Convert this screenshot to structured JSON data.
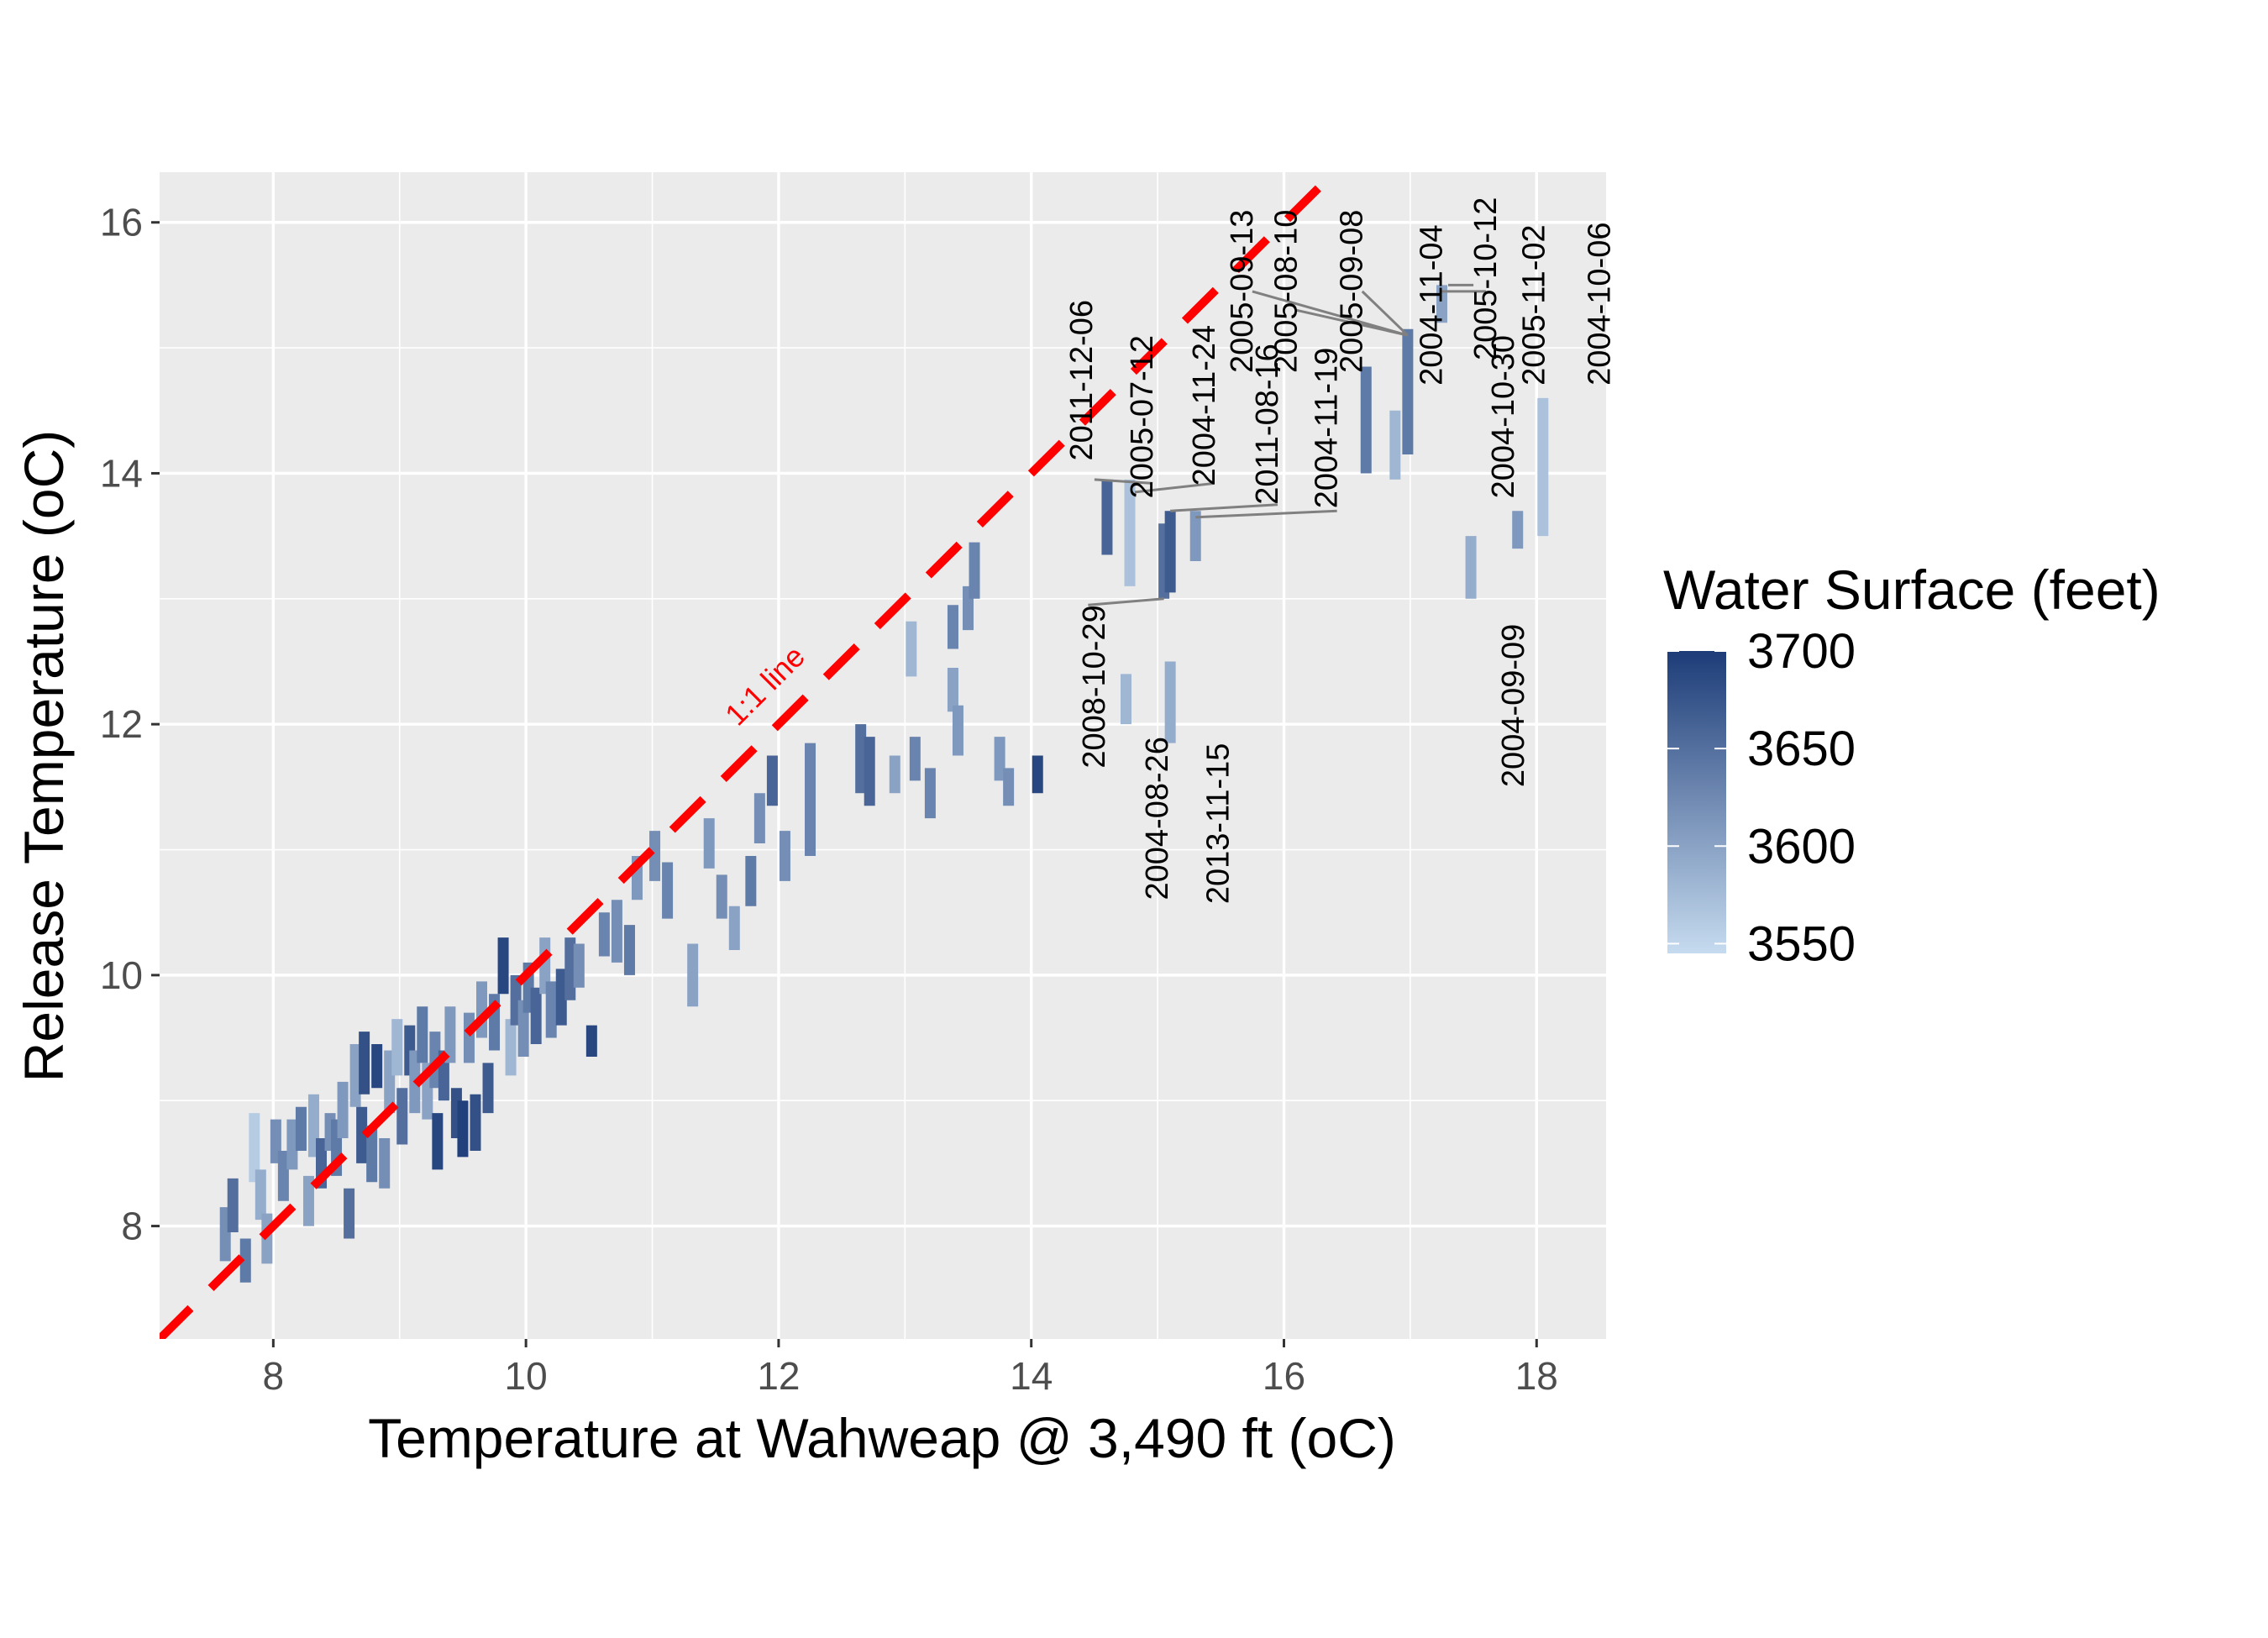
{
  "chart_data": {
    "type": "scatter",
    "title": "",
    "xlabel": "Temperature at Wahweap @ 3,490 ft (oC)",
    "ylabel": "Release Temperature (oC)",
    "xlim": [
      7.1,
      18.55
    ],
    "ylim": [
      7.1,
      16.4
    ],
    "x_ticks": [
      8,
      10,
      12,
      14,
      16,
      18
    ],
    "y_ticks": [
      8,
      10,
      12,
      14,
      16
    ],
    "x_tick_labels": [
      "8",
      "10",
      "12",
      "14",
      "16",
      "18"
    ],
    "y_tick_labels": [
      "8",
      "10",
      "12",
      "14",
      "16"
    ],
    "grid": true,
    "mark_shape": "vertical-segment",
    "reference_line": {
      "label": "1:1 line",
      "slope": 1,
      "intercept": 0,
      "color": "#ff0000",
      "style": "dashed"
    },
    "legend": {
      "title": "Water Surface (feet)",
      "type": "continuous-colorbar",
      "placement": "right",
      "range": [
        3545,
        3700
      ],
      "ticks": [
        3700,
        3650,
        3600,
        3550
      ],
      "tick_labels": [
        "3700",
        "3650",
        "3600",
        "3550"
      ],
      "color_low": "#c6dbef",
      "color_high": "#1d3c78"
    },
    "points": [
      {
        "x": 7.62,
        "ymin": 7.72,
        "ymax": 8.15,
        "ws": 3620
      },
      {
        "x": 7.68,
        "ymin": 7.95,
        "ymax": 8.38,
        "ws": 3650
      },
      {
        "x": 7.78,
        "ymin": 7.55,
        "ymax": 7.9,
        "ws": 3640
      },
      {
        "x": 7.85,
        "ymin": 8.35,
        "ymax": 8.9,
        "ws": 3560
      },
      {
        "x": 7.9,
        "ymin": 8.05,
        "ymax": 8.45,
        "ws": 3590
      },
      {
        "x": 7.95,
        "ymin": 7.7,
        "ymax": 8.1,
        "ws": 3600
      },
      {
        "x": 8.02,
        "ymin": 8.5,
        "ymax": 8.85,
        "ws": 3620
      },
      {
        "x": 8.08,
        "ymin": 8.2,
        "ymax": 8.6,
        "ws": 3630
      },
      {
        "x": 8.15,
        "ymin": 8.45,
        "ymax": 8.85,
        "ws": 3610
      },
      {
        "x": 8.22,
        "ymin": 8.6,
        "ymax": 8.95,
        "ws": 3640
      },
      {
        "x": 8.28,
        "ymin": 8.0,
        "ymax": 8.4,
        "ws": 3600
      },
      {
        "x": 8.32,
        "ymin": 8.55,
        "ymax": 9.05,
        "ws": 3590
      },
      {
        "x": 8.38,
        "ymin": 8.3,
        "ymax": 8.7,
        "ws": 3660
      },
      {
        "x": 8.45,
        "ymin": 8.6,
        "ymax": 8.9,
        "ws": 3620
      },
      {
        "x": 8.5,
        "ymin": 8.4,
        "ymax": 8.85,
        "ws": 3640
      },
      {
        "x": 8.55,
        "ymin": 8.7,
        "ymax": 9.15,
        "ws": 3610
      },
      {
        "x": 8.6,
        "ymin": 7.9,
        "ymax": 8.3,
        "ws": 3650
      },
      {
        "x": 8.65,
        "ymin": 8.95,
        "ymax": 9.45,
        "ws": 3600
      },
      {
        "x": 8.7,
        "ymin": 8.5,
        "ymax": 8.95,
        "ws": 3670
      },
      {
        "x": 8.72,
        "ymin": 9.05,
        "ymax": 9.55,
        "ws": 3680
      },
      {
        "x": 8.78,
        "ymin": 8.35,
        "ymax": 8.8,
        "ws": 3640
      },
      {
        "x": 8.82,
        "ymin": 9.1,
        "ymax": 9.45,
        "ws": 3690
      },
      {
        "x": 8.88,
        "ymin": 8.3,
        "ymax": 8.7,
        "ws": 3620
      },
      {
        "x": 8.92,
        "ymin": 8.9,
        "ymax": 9.4,
        "ws": 3600
      },
      {
        "x": 8.98,
        "ymin": 9.2,
        "ymax": 9.65,
        "ws": 3580
      },
      {
        "x": 9.02,
        "ymin": 8.65,
        "ymax": 9.1,
        "ws": 3650
      },
      {
        "x": 9.08,
        "ymin": 9.2,
        "ymax": 9.6,
        "ws": 3670
      },
      {
        "x": 9.12,
        "ymin": 8.9,
        "ymax": 9.4,
        "ws": 3610
      },
      {
        "x": 9.18,
        "ymin": 9.3,
        "ymax": 9.75,
        "ws": 3640
      },
      {
        "x": 9.22,
        "ymin": 8.85,
        "ymax": 9.3,
        "ws": 3600
      },
      {
        "x": 9.28,
        "ymin": 9.1,
        "ymax": 9.55,
        "ws": 3630
      },
      {
        "x": 9.3,
        "ymin": 8.45,
        "ymax": 8.9,
        "ws": 3690
      },
      {
        "x": 9.35,
        "ymin": 9.0,
        "ymax": 9.4,
        "ws": 3660
      },
      {
        "x": 9.4,
        "ymin": 9.3,
        "ymax": 9.75,
        "ws": 3610
      },
      {
        "x": 9.45,
        "ymin": 8.7,
        "ymax": 9.1,
        "ws": 3680
      },
      {
        "x": 9.5,
        "ymin": 8.55,
        "ymax": 9.0,
        "ws": 3695
      },
      {
        "x": 9.55,
        "ymin": 9.3,
        "ymax": 9.7,
        "ws": 3620
      },
      {
        "x": 9.6,
        "ymin": 8.6,
        "ymax": 9.05,
        "ws": 3680
      },
      {
        "x": 9.65,
        "ymin": 9.5,
        "ymax": 9.95,
        "ws": 3610
      },
      {
        "x": 9.7,
        "ymin": 8.9,
        "ymax": 9.3,
        "ws": 3670
      },
      {
        "x": 9.75,
        "ymin": 9.4,
        "ymax": 9.85,
        "ws": 3640
      },
      {
        "x": 9.82,
        "ymin": 9.85,
        "ymax": 10.3,
        "ws": 3690
      },
      {
        "x": 9.88,
        "ymin": 9.2,
        "ymax": 9.65,
        "ws": 3580
      },
      {
        "x": 9.92,
        "ymin": 9.6,
        "ymax": 10.0,
        "ws": 3650
      },
      {
        "x": 9.98,
        "ymin": 9.35,
        "ymax": 9.8,
        "ws": 3620
      },
      {
        "x": 10.02,
        "ymin": 9.7,
        "ymax": 10.1,
        "ws": 3640
      },
      {
        "x": 10.08,
        "ymin": 9.45,
        "ymax": 9.9,
        "ws": 3660
      },
      {
        "x": 10.15,
        "ymin": 9.85,
        "ymax": 10.3,
        "ws": 3600
      },
      {
        "x": 10.2,
        "ymin": 9.5,
        "ymax": 9.95,
        "ws": 3630
      },
      {
        "x": 10.28,
        "ymin": 9.6,
        "ymax": 10.05,
        "ws": 3670
      },
      {
        "x": 10.35,
        "ymin": 9.8,
        "ymax": 10.3,
        "ws": 3650
      },
      {
        "x": 10.42,
        "ymin": 9.9,
        "ymax": 10.25,
        "ws": 3620
      },
      {
        "x": 10.52,
        "ymin": 9.35,
        "ymax": 9.6,
        "ws": 3690
      },
      {
        "x": 10.62,
        "ymin": 10.15,
        "ymax": 10.5,
        "ws": 3630
      },
      {
        "x": 10.72,
        "ymin": 10.1,
        "ymax": 10.6,
        "ws": 3620
      },
      {
        "x": 10.82,
        "ymin": 10.0,
        "ymax": 10.4,
        "ws": 3640
      },
      {
        "x": 10.88,
        "ymin": 10.6,
        "ymax": 10.95,
        "ws": 3610
      },
      {
        "x": 11.02,
        "ymin": 10.75,
        "ymax": 11.15,
        "ws": 3620
      },
      {
        "x": 11.12,
        "ymin": 10.45,
        "ymax": 10.9,
        "ws": 3630
      },
      {
        "x": 11.32,
        "ymin": 9.75,
        "ymax": 10.25,
        "ws": 3600
      },
      {
        "x": 11.45,
        "ymin": 10.85,
        "ymax": 11.25,
        "ws": 3610
      },
      {
        "x": 11.55,
        "ymin": 10.45,
        "ymax": 10.8,
        "ws": 3620
      },
      {
        "x": 11.65,
        "ymin": 10.2,
        "ymax": 10.55,
        "ws": 3600
      },
      {
        "x": 11.78,
        "ymin": 10.55,
        "ymax": 10.95,
        "ws": 3640
      },
      {
        "x": 11.85,
        "ymin": 11.05,
        "ymax": 11.45,
        "ws": 3620
      },
      {
        "x": 11.95,
        "ymin": 11.35,
        "ymax": 11.75,
        "ws": 3660
      },
      {
        "x": 12.05,
        "ymin": 10.75,
        "ymax": 11.15,
        "ws": 3620
      },
      {
        "x": 12.25,
        "ymin": 10.95,
        "ymax": 11.85,
        "ws": 3630
      },
      {
        "x": 12.65,
        "ymin": 11.45,
        "ymax": 12.0,
        "ws": 3650
      },
      {
        "x": 12.72,
        "ymin": 11.35,
        "ymax": 11.9,
        "ws": 3660
      },
      {
        "x": 12.92,
        "ymin": 11.45,
        "ymax": 11.75,
        "ws": 3600
      },
      {
        "x": 13.05,
        "ymin": 12.38,
        "ymax": 12.82,
        "ws": 3580
      },
      {
        "x": 13.08,
        "ymin": 11.55,
        "ymax": 11.9,
        "ws": 3630
      },
      {
        "x": 13.2,
        "ymin": 11.25,
        "ymax": 11.65,
        "ws": 3630
      },
      {
        "x": 13.38,
        "ymin": 12.1,
        "ymax": 12.45,
        "ws": 3600
      },
      {
        "x": 13.38,
        "ymin": 12.6,
        "ymax": 12.95,
        "ws": 3630
      },
      {
        "x": 13.42,
        "ymin": 11.75,
        "ymax": 12.15,
        "ws": 3610
      },
      {
        "x": 13.5,
        "ymin": 12.75,
        "ymax": 13.1,
        "ws": 3620
      },
      {
        "x": 13.55,
        "ymin": 13.0,
        "ymax": 13.45,
        "ws": 3630
      },
      {
        "x": 13.75,
        "ymin": 11.55,
        "ymax": 11.9,
        "ws": 3610
      },
      {
        "x": 13.82,
        "ymin": 11.35,
        "ymax": 11.65,
        "ws": 3620
      },
      {
        "x": 14.05,
        "ymin": 11.45,
        "ymax": 11.75,
        "ws": 3690
      },
      {
        "x": 14.6,
        "ymin": 13.35,
        "ymax": 13.95,
        "ws": 3660
      },
      {
        "x": 14.75,
        "ymin": 12.0,
        "ymax": 12.4,
        "ws": 3580
      },
      {
        "x": 14.78,
        "ymin": 13.1,
        "ymax": 13.95,
        "ws": 3570
      },
      {
        "x": 15.05,
        "ymin": 13.0,
        "ymax": 13.6,
        "ws": 3650
      },
      {
        "x": 15.1,
        "ymin": 13.05,
        "ymax": 13.7,
        "ws": 3670
      },
      {
        "x": 15.1,
        "ymin": 11.85,
        "ymax": 12.5,
        "ws": 3590
      },
      {
        "x": 15.3,
        "ymin": 13.3,
        "ymax": 13.7,
        "ws": 3610
      },
      {
        "x": 16.65,
        "ymin": 14.0,
        "ymax": 14.85,
        "ws": 3640
      },
      {
        "x": 16.88,
        "ymin": 13.95,
        "ymax": 14.5,
        "ws": 3580
      },
      {
        "x": 16.98,
        "ymin": 14.15,
        "ymax": 15.15,
        "ws": 3640
      },
      {
        "x": 17.25,
        "ymin": 15.2,
        "ymax": 15.5,
        "ws": 3600
      },
      {
        "x": 17.48,
        "ymin": 13.0,
        "ymax": 13.5,
        "ws": 3590
      },
      {
        "x": 17.85,
        "ymin": 13.4,
        "ymax": 13.7,
        "ws": 3610
      },
      {
        "x": 18.05,
        "ymin": 13.5,
        "ymax": 14.6,
        "ws": 3570
      }
    ],
    "annotations": [
      {
        "text": "2011-12-06",
        "x": 14.48,
        "y": 14.1,
        "anchor": "start"
      },
      {
        "text": "2005-07-12",
        "x": 14.96,
        "y": 13.8,
        "anchor": "start",
        "line_from": [
          14.96,
          13.92
        ],
        "line_to": [
          14.5,
          13.95
        ]
      },
      {
        "text": "2004-11-24",
        "x": 15.45,
        "y": 13.9,
        "anchor": "start",
        "line_from": [
          15.45,
          13.92
        ],
        "line_to": [
          14.82,
          13.85
        ]
      },
      {
        "text": "2005-09-13",
        "x": 15.75,
        "y": 14.8,
        "anchor": "start",
        "line_from": [
          15.75,
          15.45
        ],
        "line_to": [
          16.98,
          15.1
        ]
      },
      {
        "text": "2011-08-16",
        "x": 15.95,
        "y": 13.75,
        "anchor": "start",
        "line_from": [
          15.95,
          13.75
        ],
        "line_to": [
          15.1,
          13.7
        ]
      },
      {
        "text": "2005-08-10",
        "x": 16.1,
        "y": 14.8,
        "anchor": "start",
        "line_from": [
          16.1,
          15.3
        ],
        "line_to": [
          16.98,
          15.1
        ]
      },
      {
        "text": "2004-11-19",
        "x": 16.42,
        "y": 13.72,
        "anchor": "start",
        "line_from": [
          16.42,
          13.7
        ],
        "line_to": [
          15.3,
          13.65
        ]
      },
      {
        "text": "2005-09-08",
        "x": 16.62,
        "y": 14.8,
        "anchor": "start",
        "line_from": [
          16.62,
          15.45
        ],
        "line_to": [
          16.98,
          15.1
        ]
      },
      {
        "text": "2004-11-04",
        "x": 17.25,
        "y": 14.7,
        "anchor": "start"
      },
      {
        "text": "2005-10-12",
        "x": 17.68,
        "y": 14.9,
        "anchor": "start",
        "line_from": [
          17.3,
          15.5
        ],
        "line_to": [
          17.5,
          15.5
        ]
      },
      {
        "text": "2004-10-30",
        "x": 17.82,
        "y": 13.8,
        "anchor": "start",
        "line_from": [
          17.6,
          15.45
        ],
        "line_to": [
          17.25,
          15.45
        ]
      },
      {
        "text": "2005-11-02",
        "x": 18.06,
        "y": 14.7,
        "anchor": "start"
      },
      {
        "text": "2004-10-06",
        "x": 18.58,
        "y": 14.7,
        "anchor": "start"
      },
      {
        "text": "2008-10-29",
        "x": 14.58,
        "y": 12.95,
        "anchor": "end",
        "line_from": [
          14.45,
          12.95
        ],
        "line_to": [
          15.05,
          13.0
        ]
      },
      {
        "text": "2004-08-26",
        "x": 15.08,
        "y": 11.9,
        "anchor": "end"
      },
      {
        "text": "2013-11-15",
        "x": 15.56,
        "y": 11.85,
        "anchor": "end"
      },
      {
        "text": "2004-09-09",
        "x": 17.9,
        "y": 12.8,
        "anchor": "end"
      }
    ]
  }
}
